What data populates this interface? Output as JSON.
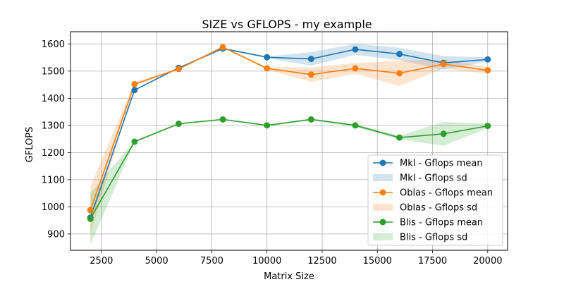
{
  "chart_data": {
    "type": "line",
    "title": "SIZE vs GFLOPS - my example",
    "xlabel": "Matrix Size",
    "ylabel": "GFLOPS",
    "xlim": [
      1100,
      20900
    ],
    "ylim": [
      840,
      1645
    ],
    "xticks": [
      2500,
      5000,
      7500,
      10000,
      12500,
      15000,
      17500,
      20000
    ],
    "xtick_labels": [
      "2500",
      "5000",
      "7500",
      "10000",
      "12500",
      "15000",
      "17500",
      "20000"
    ],
    "yticks": [
      900,
      1000,
      1100,
      1200,
      1300,
      1400,
      1500,
      1600
    ],
    "ytick_labels": [
      "900",
      "1000",
      "1100",
      "1200",
      "1300",
      "1400",
      "1500",
      "1600"
    ],
    "grid": true,
    "legend_position": "lower-right",
    "x": [
      2000,
      4000,
      6000,
      8000,
      10000,
      12000,
      14000,
      16000,
      18000,
      20000
    ],
    "series": [
      {
        "name": "Mkl - Gflops mean",
        "band_name": "Mkl - Gflops sd",
        "color": "#1f77b4",
        "values": [
          960,
          1430,
          1512,
          1583,
          1551,
          1545,
          1580,
          1563,
          1530,
          1543
        ],
        "lower": [
          950,
          1428,
          1510,
          1580,
          1548,
          1520,
          1560,
          1540,
          1505,
          1535
        ],
        "upper": [
          970,
          1432,
          1514,
          1586,
          1554,
          1570,
          1600,
          1586,
          1555,
          1551
        ]
      },
      {
        "name": "Oblas - Gflops mean",
        "band_name": "Oblas - Gflops sd",
        "color": "#ff7f0e",
        "values": [
          988,
          1452,
          1508,
          1588,
          1510,
          1487,
          1510,
          1492,
          1526,
          1503
        ],
        "lower": [
          900,
          1445,
          1505,
          1585,
          1505,
          1460,
          1490,
          1445,
          1510,
          1490
        ],
        "upper": [
          1075,
          1459,
          1511,
          1591,
          1515,
          1514,
          1530,
          1539,
          1542,
          1516
        ]
      },
      {
        "name": "Blis - Gflops mean",
        "band_name": "Blis - Gflops sd",
        "color": "#2ca02c",
        "values": [
          956,
          1240,
          1306,
          1322,
          1300,
          1322,
          1300,
          1255,
          1269,
          1298
        ],
        "lower": [
          860,
          1237,
          1303,
          1319,
          1297,
          1318,
          1295,
          1248,
          1225,
          1290
        ],
        "upper": [
          1050,
          1243,
          1309,
          1325,
          1303,
          1326,
          1305,
          1262,
          1313,
          1306
        ]
      }
    ]
  }
}
